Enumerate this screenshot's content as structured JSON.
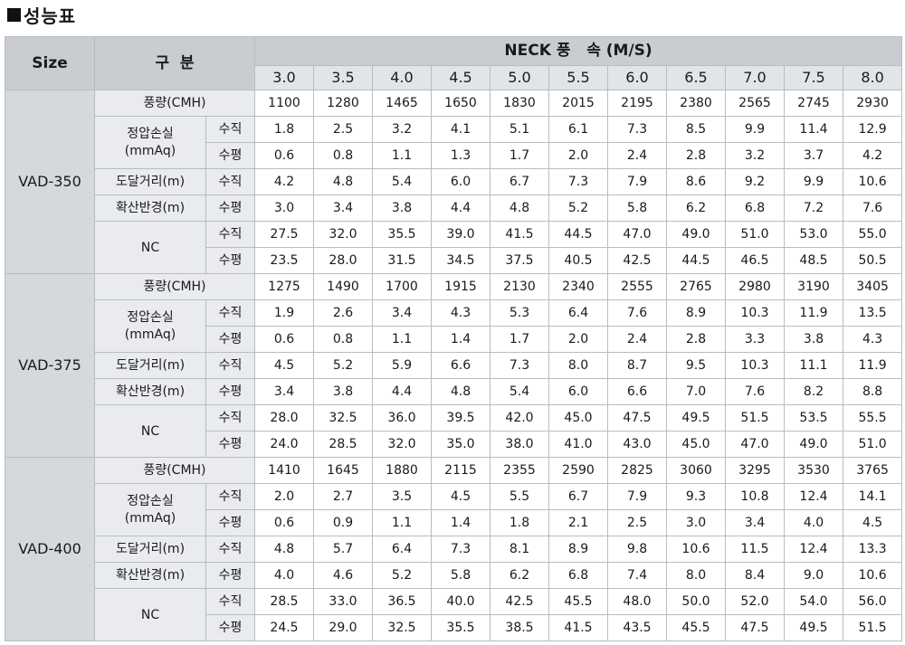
{
  "title": "성능표",
  "header": {
    "size": "Size",
    "category": "구  분",
    "neck": "NECK 풍   속 (M/S)",
    "speeds": [
      "3.0",
      "3.5",
      "4.0",
      "4.5",
      "5.0",
      "5.5",
      "6.0",
      "6.5",
      "7.0",
      "7.5",
      "8.0"
    ]
  },
  "labels": {
    "flow": "풍량(CMH)",
    "pressure_line1": "정압손실",
    "pressure_line2": "(mmAq)",
    "reach": "도달거리(m)",
    "diffusion": "확산반경(m)",
    "nc": "NC",
    "vertical": "수직",
    "horizontal": "수평"
  },
  "models": [
    {
      "name": "VAD-350",
      "flow": [
        "1100",
        "1280",
        "1465",
        "1650",
        "1830",
        "2015",
        "2195",
        "2380",
        "2565",
        "2745",
        "2930"
      ],
      "pressure_vertical": [
        "1.8",
        "2.5",
        "3.2",
        "4.1",
        "5.1",
        "6.1",
        "7.3",
        "8.5",
        "9.9",
        "11.4",
        "12.9"
      ],
      "pressure_horizontal": [
        "0.6",
        "0.8",
        "1.1",
        "1.3",
        "1.7",
        "2.0",
        "2.4",
        "2.8",
        "3.2",
        "3.7",
        "4.2"
      ],
      "reach_vertical": [
        "4.2",
        "4.8",
        "5.4",
        "6.0",
        "6.7",
        "7.3",
        "7.9",
        "8.6",
        "9.2",
        "9.9",
        "10.6"
      ],
      "diffusion_horizontal": [
        "3.0",
        "3.4",
        "3.8",
        "4.4",
        "4.8",
        "5.2",
        "5.8",
        "6.2",
        "6.8",
        "7.2",
        "7.6"
      ],
      "nc_vertical": [
        "27.5",
        "32.0",
        "35.5",
        "39.0",
        "41.5",
        "44.5",
        "47.0",
        "49.0",
        "51.0",
        "53.0",
        "55.0"
      ],
      "nc_horizontal": [
        "23.5",
        "28.0",
        "31.5",
        "34.5",
        "37.5",
        "40.5",
        "42.5",
        "44.5",
        "46.5",
        "48.5",
        "50.5"
      ]
    },
    {
      "name": "VAD-375",
      "flow": [
        "1275",
        "1490",
        "1700",
        "1915",
        "2130",
        "2340",
        "2555",
        "2765",
        "2980",
        "3190",
        "3405"
      ],
      "pressure_vertical": [
        "1.9",
        "2.6",
        "3.4",
        "4.3",
        "5.3",
        "6.4",
        "7.6",
        "8.9",
        "10.3",
        "11.9",
        "13.5"
      ],
      "pressure_horizontal": [
        "0.6",
        "0.8",
        "1.1",
        "1.4",
        "1.7",
        "2.0",
        "2.4",
        "2.8",
        "3.3",
        "3.8",
        "4.3"
      ],
      "reach_vertical": [
        "4.5",
        "5.2",
        "5.9",
        "6.6",
        "7.3",
        "8.0",
        "8.7",
        "9.5",
        "10.3",
        "11.1",
        "11.9"
      ],
      "diffusion_horizontal": [
        "3.4",
        "3.8",
        "4.4",
        "4.8",
        "5.4",
        "6.0",
        "6.6",
        "7.0",
        "7.6",
        "8.2",
        "8.8"
      ],
      "nc_vertical": [
        "28.0",
        "32.5",
        "36.0",
        "39.5",
        "42.0",
        "45.0",
        "47.5",
        "49.5",
        "51.5",
        "53.5",
        "55.5"
      ],
      "nc_horizontal": [
        "24.0",
        "28.5",
        "32.0",
        "35.0",
        "38.0",
        "41.0",
        "43.0",
        "45.0",
        "47.0",
        "49.0",
        "51.0"
      ]
    },
    {
      "name": "VAD-400",
      "flow": [
        "1410",
        "1645",
        "1880",
        "2115",
        "2355",
        "2590",
        "2825",
        "3060",
        "3295",
        "3530",
        "3765"
      ],
      "pressure_vertical": [
        "2.0",
        "2.7",
        "3.5",
        "4.5",
        "5.5",
        "6.7",
        "7.9",
        "9.3",
        "10.8",
        "12.4",
        "14.1"
      ],
      "pressure_horizontal": [
        "0.6",
        "0.9",
        "1.1",
        "1.4",
        "1.8",
        "2.1",
        "2.5",
        "3.0",
        "3.4",
        "4.0",
        "4.5"
      ],
      "reach_vertical": [
        "4.8",
        "5.7",
        "6.4",
        "7.3",
        "8.1",
        "8.9",
        "9.8",
        "10.6",
        "11.5",
        "12.4",
        "13.3"
      ],
      "diffusion_horizontal": [
        "4.0",
        "4.6",
        "5.2",
        "5.8",
        "6.2",
        "6.8",
        "7.4",
        "8.0",
        "8.4",
        "9.0",
        "10.6"
      ],
      "nc_vertical": [
        "28.5",
        "33.0",
        "36.5",
        "40.0",
        "42.5",
        "45.5",
        "48.0",
        "50.0",
        "52.0",
        "54.0",
        "56.0"
      ],
      "nc_horizontal": [
        "24.5",
        "29.0",
        "32.5",
        "35.5",
        "38.5",
        "41.5",
        "43.5",
        "45.5",
        "47.5",
        "49.5",
        "51.5"
      ]
    }
  ]
}
